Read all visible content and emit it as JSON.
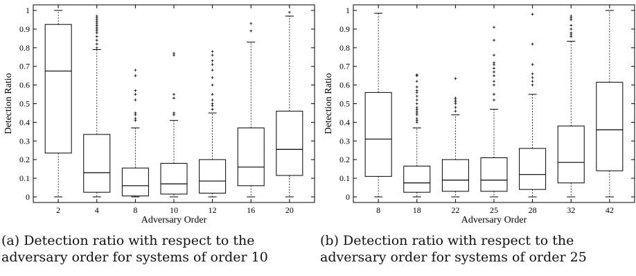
{
  "chart_data": [
    {
      "type": "box",
      "xlabel": "Adversary Order",
      "ylabel": "Detection Ratio",
      "ylim": [
        -0.03,
        1.03
      ],
      "yticks": [
        "0",
        "0.1",
        "0.2",
        "0.3",
        "0.4",
        "0.5",
        "0.6",
        "0.7",
        "0.8",
        "0.9",
        "1"
      ],
      "categories": [
        "2",
        "4",
        "8",
        "10",
        "12",
        "16",
        "20"
      ],
      "boxes": [
        {
          "category": "2",
          "whisker_low": 0,
          "q1": 0.235,
          "median": 0.675,
          "q3": 0.925,
          "whisker_high": 1.0,
          "outliers": []
        },
        {
          "category": "4",
          "whisker_low": 0,
          "q1": 0.025,
          "median": 0.13,
          "q3": 0.335,
          "whisker_high": 0.79,
          "outliers": [
            0.8,
            0.82,
            0.84,
            0.86,
            0.88,
            0.89,
            0.9,
            0.91,
            0.92,
            0.93,
            0.94,
            0.95,
            0.96,
            0.97
          ]
        },
        {
          "category": "8",
          "whisker_low": 0,
          "q1": 0.005,
          "median": 0.06,
          "q3": 0.155,
          "whisker_high": 0.37,
          "outliers": [
            0.41,
            0.42,
            0.44,
            0.45,
            0.52,
            0.55,
            0.57,
            0.65,
            0.68
          ]
        },
        {
          "category": "10",
          "whisker_low": 0,
          "q1": 0.015,
          "median": 0.07,
          "q3": 0.18,
          "whisker_high": 0.41,
          "outliers": [
            0.44,
            0.45,
            0.53,
            0.55,
            0.76,
            0.77
          ]
        },
        {
          "category": "12",
          "whisker_low": 0,
          "q1": 0.02,
          "median": 0.085,
          "q3": 0.2,
          "whisker_high": 0.45,
          "outliers": [
            0.47,
            0.49,
            0.5,
            0.52,
            0.55,
            0.6,
            0.64,
            0.68,
            0.71,
            0.73,
            0.76,
            0.78
          ]
        },
        {
          "category": "16",
          "whisker_low": 0,
          "q1": 0.06,
          "median": 0.16,
          "q3": 0.37,
          "whisker_high": 0.83,
          "outliers": [
            0.89,
            0.93
          ]
        },
        {
          "category": "20",
          "whisker_low": 0,
          "q1": 0.115,
          "median": 0.255,
          "q3": 0.46,
          "whisker_high": 0.97,
          "outliers": [
            0.99
          ]
        }
      ]
    },
    {
      "type": "box",
      "xlabel": "Adversary Order",
      "ylabel": "Detection Ratio",
      "ylim": [
        -0.03,
        1.03
      ],
      "yticks": [
        "0",
        "0.1",
        "0.2",
        "0.3",
        "0.4",
        "0.5",
        "0.6",
        "0.7",
        "0.8",
        "0.9",
        "1"
      ],
      "categories": [
        "8",
        "18",
        "22",
        "25",
        "28",
        "32",
        "42"
      ],
      "boxes": [
        {
          "category": "8",
          "whisker_low": 0,
          "q1": 0.11,
          "median": 0.31,
          "q3": 0.56,
          "whisker_high": 0.985,
          "outliers": []
        },
        {
          "category": "18",
          "whisker_low": 0,
          "q1": 0.025,
          "median": 0.075,
          "q3": 0.165,
          "whisker_high": 0.37,
          "outliers": [
            0.4,
            0.41,
            0.42,
            0.44,
            0.45,
            0.46,
            0.47,
            0.48,
            0.5,
            0.52,
            0.54,
            0.56,
            0.57,
            0.59,
            0.62,
            0.65,
            0.655
          ]
        },
        {
          "category": "22",
          "whisker_low": 0,
          "q1": 0.03,
          "median": 0.09,
          "q3": 0.2,
          "whisker_high": 0.44,
          "outliers": [
            0.46,
            0.48,
            0.5,
            0.51,
            0.52,
            0.53,
            0.635
          ]
        },
        {
          "category": "25",
          "whisker_low": 0,
          "q1": 0.03,
          "median": 0.09,
          "q3": 0.21,
          "whisker_high": 0.47,
          "outliers": [
            0.52,
            0.55,
            0.6,
            0.62,
            0.65,
            0.67,
            0.69,
            0.71,
            0.72,
            0.76,
            0.84,
            0.91
          ]
        },
        {
          "category": "28",
          "whisker_low": 0,
          "q1": 0.04,
          "median": 0.12,
          "q3": 0.26,
          "whisker_high": 0.55,
          "outliers": [
            0.6,
            0.62,
            0.64,
            0.66,
            0.71,
            0.82,
            0.98
          ]
        },
        {
          "category": "32",
          "whisker_low": 0,
          "q1": 0.075,
          "median": 0.185,
          "q3": 0.38,
          "whisker_high": 0.835,
          "outliers": [
            0.86,
            0.87,
            0.88,
            0.9,
            0.92,
            0.95,
            0.96,
            0.97
          ]
        },
        {
          "category": "42",
          "whisker_low": 0,
          "q1": 0.14,
          "median": 0.36,
          "q3": 0.615,
          "whisker_high": 1.0,
          "outliers": []
        }
      ]
    }
  ],
  "captions": {
    "a": {
      "line1": "(a) Detection ratio with respect to the",
      "line2": "adversary order for systems of order 10"
    },
    "b": {
      "line1": "(b) Detection ratio with respect to the",
      "line2": "adversary order for systems of order 25"
    }
  }
}
